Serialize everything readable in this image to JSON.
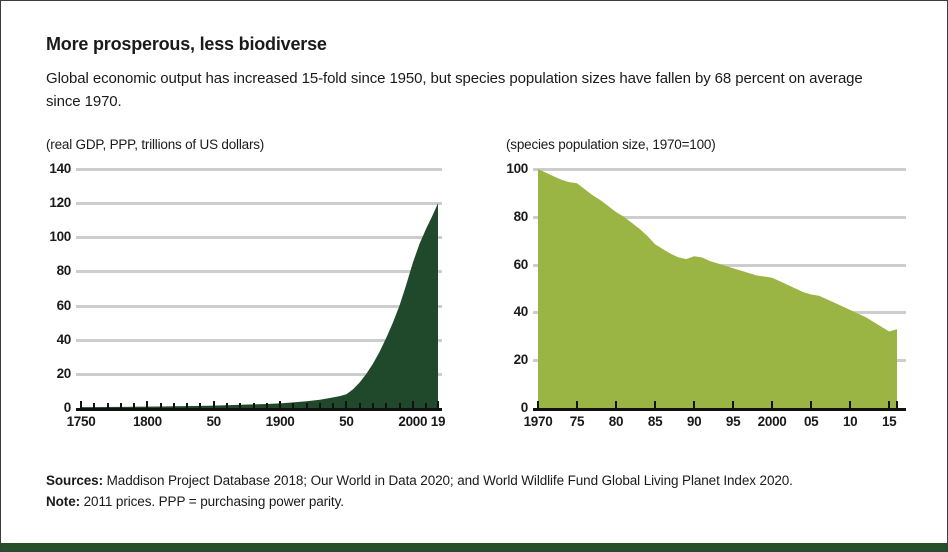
{
  "header": {
    "title": "More prosperous, less biodiverse",
    "subtitle_line1": "Global economic output has increased 15-fold since 1950, but species population sizes have fallen by 68 percent on average",
    "subtitle_line2": "since 1970."
  },
  "footer": {
    "sources_label": "Sources:",
    "sources_text": " Maddison Project Database 2018; Our World in Data 2020; and World Wildlife Fund Global Living Planet Index 2020.",
    "note_label": "Note:",
    "note_text": " 2011 prices.  PPP = purchasing power parity."
  },
  "colors": {
    "gdp_area": "#20492b",
    "species_area": "#9ab544",
    "gridline": "#cdcdcd",
    "axis": "#111111",
    "accent_band": "#24502a",
    "text": "#1a1a1a"
  },
  "chart_data": [
    {
      "type": "area",
      "axis_title": "(real GDP, PPP, trillions of US dollars)",
      "color": "#20492b",
      "xlim": [
        1750,
        2019
      ],
      "ylim": [
        0,
        140
      ],
      "grid": "horizontal",
      "y_ticks": [
        0,
        20,
        40,
        60,
        80,
        100,
        120,
        140
      ],
      "x_ticks": [
        {
          "x": 1750,
          "label": "1750"
        },
        {
          "x": 1800,
          "label": "1800"
        },
        {
          "x": 1850,
          "label": "50"
        },
        {
          "x": 1900,
          "label": "1900"
        },
        {
          "x": 1950,
          "label": "50"
        },
        {
          "x": 2000,
          "label": "2000"
        },
        {
          "x": 2019,
          "label": "19"
        }
      ],
      "minor_tick_step": 10,
      "series": [
        {
          "name": "World real GDP (trillions of 2011 US dollars)",
          "x": [
            1750,
            1760,
            1770,
            1780,
            1790,
            1800,
            1810,
            1820,
            1830,
            1840,
            1850,
            1860,
            1870,
            1880,
            1890,
            1900,
            1910,
            1920,
            1930,
            1940,
            1945,
            1950,
            1955,
            1960,
            1965,
            1970,
            1975,
            1980,
            1985,
            1990,
            1995,
            2000,
            2005,
            2010,
            2015,
            2019
          ],
          "values": [
            0.5,
            0.55,
            0.6,
            0.65,
            0.72,
            0.8,
            0.9,
            1.0,
            1.1,
            1.25,
            1.4,
            1.65,
            1.9,
            2.1,
            2.35,
            2.7,
            3.3,
            3.9,
            4.8,
            6.2,
            7.0,
            8.0,
            11,
            15,
            20,
            26,
            33,
            41,
            50,
            60,
            72,
            85,
            96,
            105,
            113,
            120
          ]
        }
      ]
    },
    {
      "type": "area",
      "axis_title": "(species population size, 1970=100)",
      "color": "#9ab544",
      "xlim": [
        1970,
        2016
      ],
      "ylim": [
        0,
        100
      ],
      "grid": "horizontal",
      "y_ticks": [
        0,
        20,
        40,
        60,
        80,
        100
      ],
      "x_ticks": [
        {
          "x": 1970,
          "label": "1970"
        },
        {
          "x": 1975,
          "label": "75"
        },
        {
          "x": 1980,
          "label": "80"
        },
        {
          "x": 1985,
          "label": "85"
        },
        {
          "x": 1990,
          "label": "90"
        },
        {
          "x": 1995,
          "label": "95"
        },
        {
          "x": 2000,
          "label": "2000"
        },
        {
          "x": 2005,
          "label": "05"
        },
        {
          "x": 2010,
          "label": "10"
        },
        {
          "x": 2015,
          "label": "15"
        }
      ],
      "minor_tick_step": 5,
      "series": [
        {
          "name": "Global Living Planet Index (1970=100)",
          "x": [
            1970,
            1971,
            1972,
            1973,
            1974,
            1975,
            1976,
            1977,
            1978,
            1979,
            1980,
            1981,
            1982,
            1983,
            1984,
            1985,
            1986,
            1987,
            1988,
            1989,
            1990,
            1991,
            1992,
            1993,
            1994,
            1995,
            1996,
            1997,
            1998,
            1999,
            2000,
            2001,
            2002,
            2003,
            2004,
            2005,
            2006,
            2007,
            2008,
            2009,
            2010,
            2011,
            2012,
            2013,
            2014,
            2015,
            2016
          ],
          "values": [
            100,
            98.5,
            97,
            95.5,
            94.5,
            94,
            91.5,
            89,
            87,
            84.5,
            82,
            80,
            77.5,
            75,
            72,
            68.5,
            66.5,
            64.5,
            63,
            62.3,
            63.5,
            63,
            61.5,
            60.5,
            59.5,
            58.5,
            57.5,
            56.5,
            55.5,
            55,
            54.5,
            53,
            51.5,
            50,
            48.5,
            47.5,
            47,
            45.5,
            44,
            42.5,
            41,
            39.5,
            38,
            36,
            34,
            32,
            33
          ]
        }
      ]
    }
  ]
}
